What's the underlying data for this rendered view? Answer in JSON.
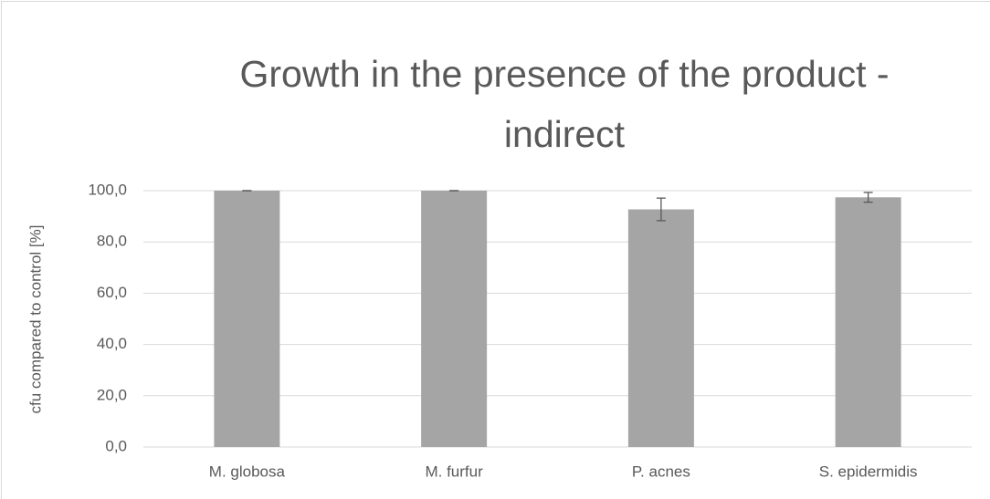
{
  "chart_data": {
    "type": "bar",
    "title": "Growth in the presence of the product - indirect",
    "ylabel": "cfu compared to control [%]",
    "categories": [
      "M. globosa",
      "M. furfur",
      "P. acnes",
      "S. epidermidis"
    ],
    "values": [
      100,
      100,
      92.7,
      97.4
    ],
    "errors": [
      0,
      0,
      4.4,
      1.9
    ],
    "color": "#a5a5a5",
    "ylim": [
      0,
      100
    ],
    "yticks": [
      {
        "value": 0,
        "label": "0,0"
      },
      {
        "value": 20,
        "label": "20,0"
      },
      {
        "value": 40,
        "label": "40,0"
      },
      {
        "value": 60,
        "label": "60,0"
      },
      {
        "value": 80,
        "label": "80,0"
      },
      {
        "value": 100,
        "label": "100,0"
      }
    ],
    "grid": true
  }
}
